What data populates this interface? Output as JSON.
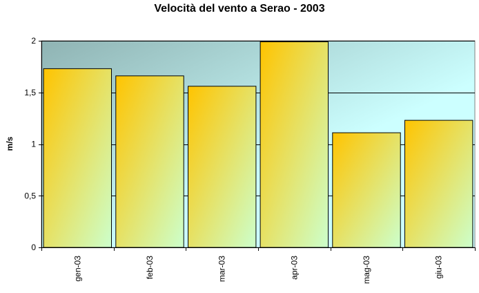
{
  "chart_data": {
    "type": "bar",
    "title": "Velocità del vento a Serao - 2003",
    "xlabel": "",
    "ylabel": "m/s",
    "categories": [
      "gen-03",
      "feb-03",
      "mar-03",
      "apr-03",
      "mag-03",
      "giu-03"
    ],
    "values": [
      1.73,
      1.66,
      1.56,
      1.99,
      1.11,
      1.23
    ],
    "ylim": [
      0,
      2
    ],
    "yticks": [
      0,
      0.5,
      1,
      1.5,
      2
    ],
    "ytick_labels": [
      "0",
      "0,5",
      "1",
      "1,5",
      "2"
    ],
    "grid": true,
    "legend": "none"
  },
  "colors": {
    "bar_top": "#ffc400",
    "bar_bottom": "#ccffcc",
    "plot_bg_dark": "#8fb3b3",
    "plot_bg_light": "#ccffff"
  }
}
